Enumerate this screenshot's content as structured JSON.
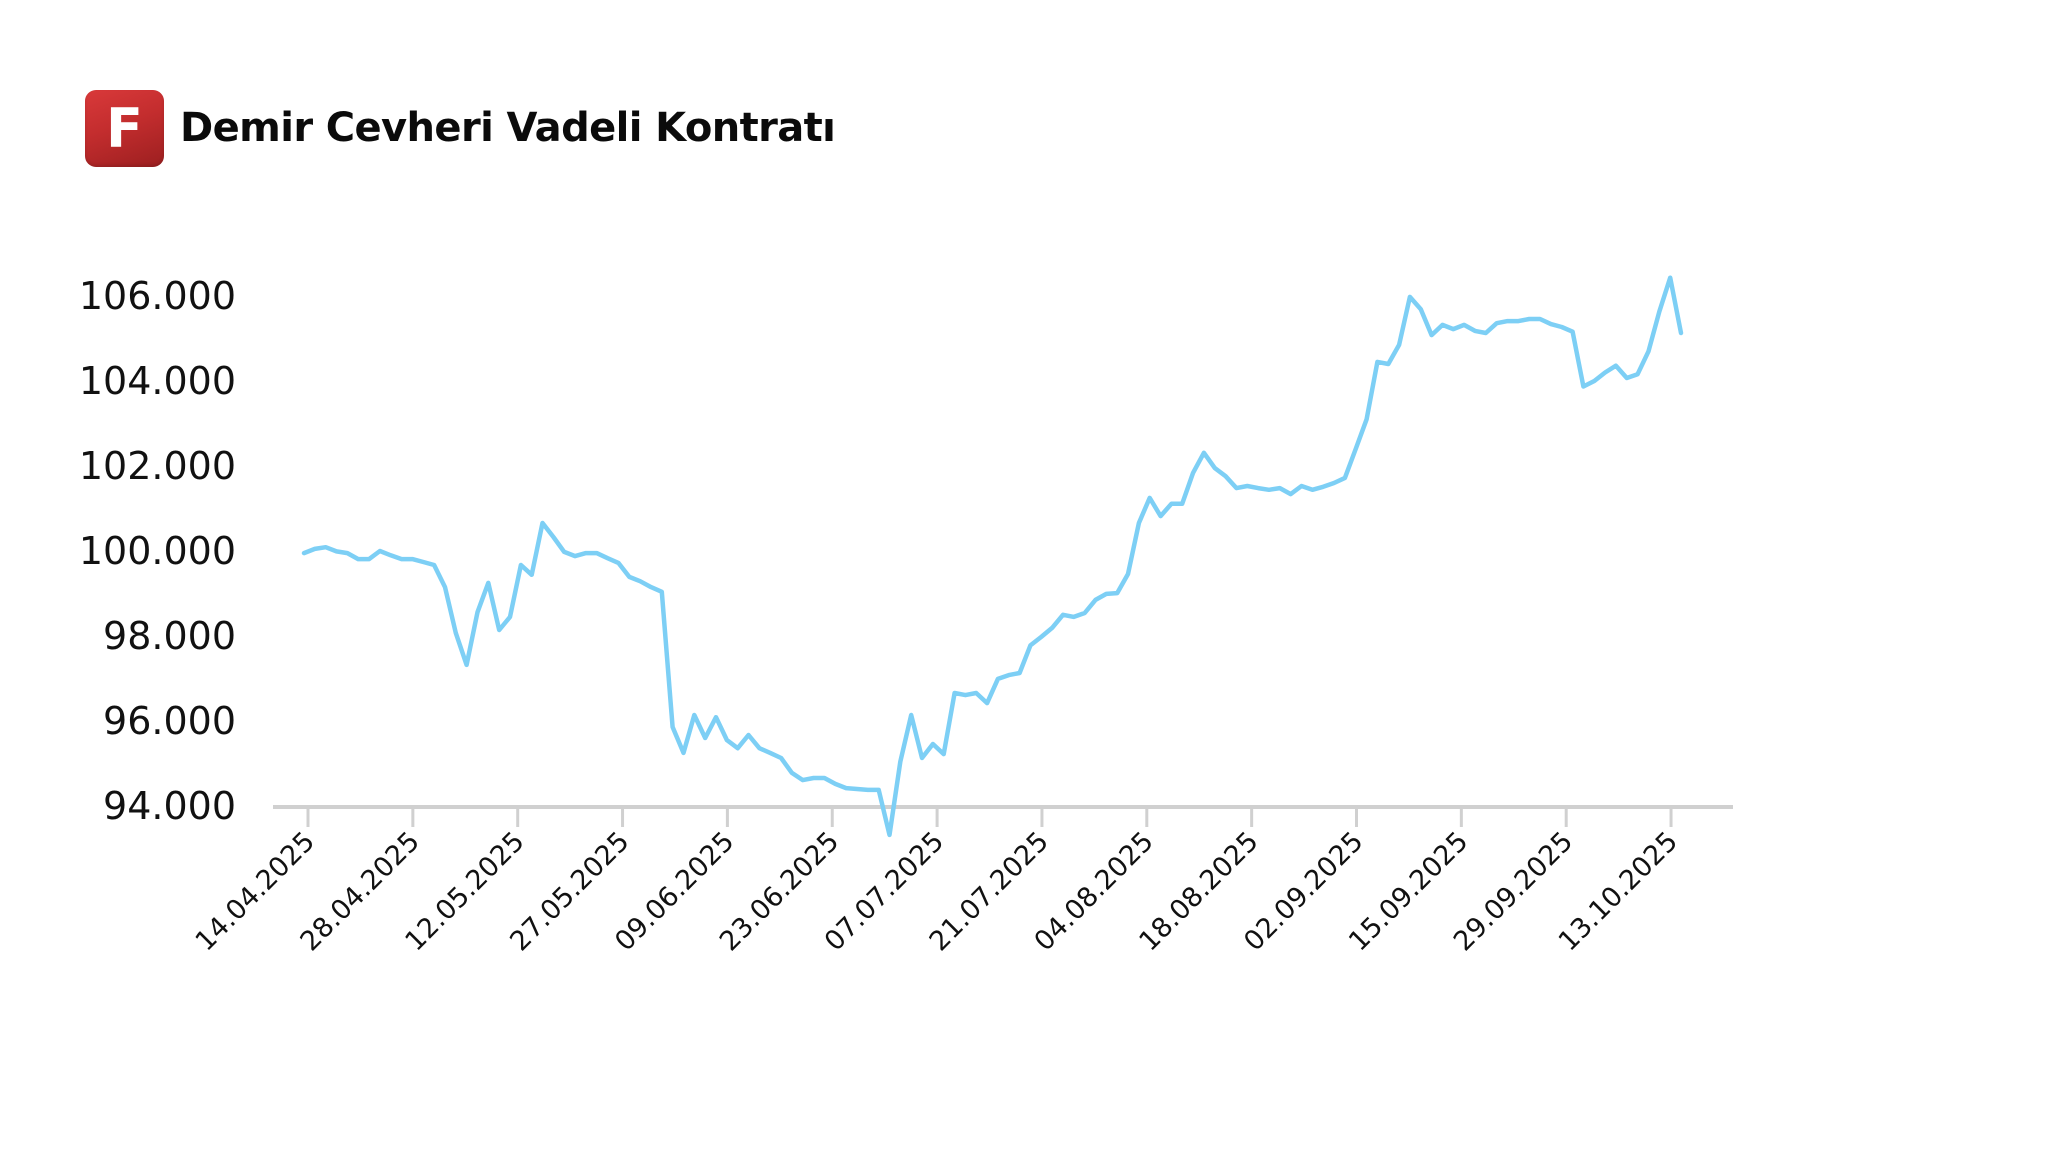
{
  "header": {
    "logo_letter": "F",
    "title": "Demir Cevheri Vadeli Kontratı"
  },
  "colors": {
    "logo_red": "#c8302f",
    "line": "#7dcff5",
    "axis": "#d0d0d0",
    "text": "#111111"
  },
  "chart_data": {
    "type": "line",
    "title": "Demir Cevheri Vadeli Kontratı",
    "xlabel": "",
    "ylabel": "",
    "ylim": [
      94000,
      106000
    ],
    "yticks": [
      94000,
      96000,
      98000,
      100000,
      102000,
      104000,
      106000
    ],
    "ytick_labels": [
      "94.000",
      "96.000",
      "98.000",
      "100.000",
      "102.000",
      "104.000",
      "106.000"
    ],
    "xtick_labels": [
      "14.04.2025",
      "28.04.2025",
      "12.05.2025",
      "27.05.2025",
      "09.06.2025",
      "23.06.2025",
      "07.07.2025",
      "21.07.2025",
      "04.08.2025",
      "18.08.2025",
      "02.09.2025",
      "15.09.2025",
      "29.09.2025",
      "13.10.2025"
    ],
    "grid": false,
    "legend": null,
    "series": [
      {
        "name": "Demir Cevheri Vadeli Kontratı",
        "color": "#7dcff5",
        "values": [
          99950,
          100050,
          100090,
          99990,
          99950,
          99810,
          99810,
          100000,
          99900,
          99810,
          99810,
          99740,
          99670,
          99150,
          98070,
          97320,
          98560,
          99250,
          98140,
          98450,
          99670,
          99440,
          100660,
          100330,
          99980,
          99880,
          99950,
          99950,
          99830,
          99720,
          99390,
          99290,
          99150,
          99040,
          95860,
          95250,
          96140,
          95600,
          96090,
          95550,
          95360,
          95670,
          95360,
          95250,
          95130,
          94780,
          94610,
          94660,
          94660,
          94520,
          94420,
          94400,
          94380,
          94380,
          93320,
          95040,
          96140,
          95130,
          95460,
          95220,
          96660,
          96610,
          96660,
          96420,
          96990,
          97080,
          97130,
          97780,
          97980,
          98190,
          98500,
          98450,
          98540,
          98850,
          98990,
          99010,
          99460,
          100660,
          101250,
          100820,
          101110,
          101110,
          101840,
          102310,
          101950,
          101760,
          101480,
          101530,
          101480,
          101440,
          101480,
          101340,
          101530,
          101440,
          101510,
          101600,
          101720,
          102400,
          103100,
          104450,
          104400,
          104850,
          105980,
          105690,
          105080,
          105320,
          105220,
          105320,
          105180,
          105130,
          105360,
          105410,
          105410,
          105460,
          105460,
          105340,
          105270,
          105160,
          103870,
          104000,
          104200,
          104360,
          104070,
          104160,
          104700,
          105630,
          106430,
          105130
        ]
      }
    ]
  }
}
